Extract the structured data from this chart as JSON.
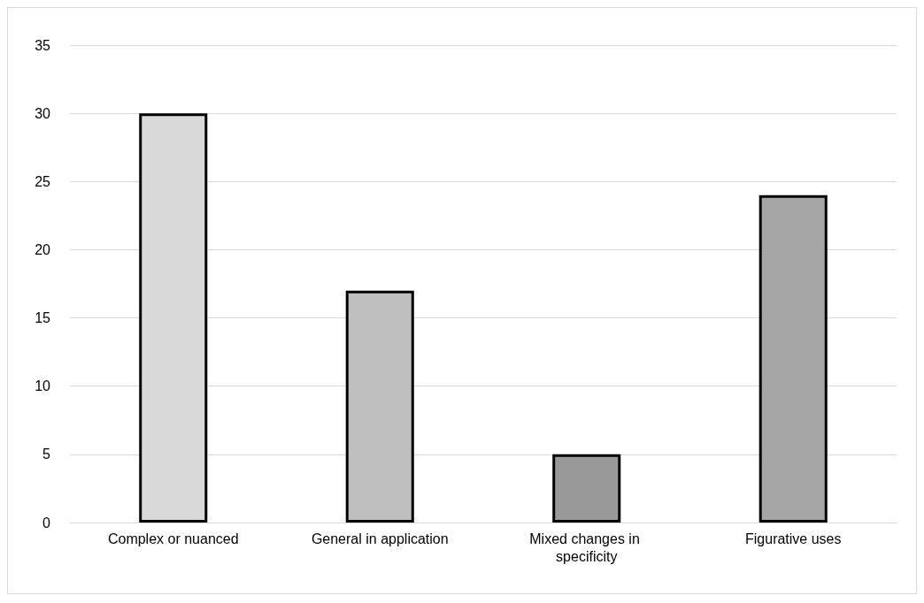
{
  "chart_data": {
    "type": "bar",
    "categories": [
      "Complex or nuanced",
      "General in application",
      "Mixed changes in specificity",
      "Figurative uses"
    ],
    "values": [
      30,
      17,
      5,
      24
    ],
    "colors": [
      "#d9d9d9",
      "#bfbfbf",
      "#999999",
      "#a6a6a6"
    ],
    "ylim": [
      0,
      35
    ],
    "yticks": [
      0,
      5,
      10,
      15,
      20,
      25,
      30,
      35
    ],
    "grid": "y"
  }
}
